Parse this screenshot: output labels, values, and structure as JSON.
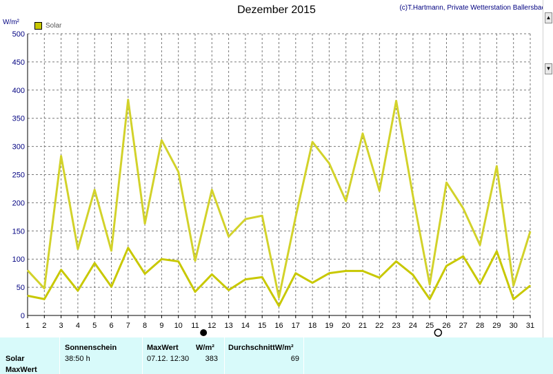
{
  "header": {
    "title": "Dezember 2015",
    "credit": "(c)T.Hartmann, Private Wetterstation Ballersbach",
    "unit": "W/m²"
  },
  "legend": {
    "label": "Solar",
    "color": "#c8c800"
  },
  "chart_data": {
    "type": "line",
    "title": "Dezember 2015",
    "ylabel": "W/m²",
    "xlabel": "",
    "ylim": [
      0,
      500
    ],
    "yticks": [
      0,
      50,
      100,
      150,
      200,
      250,
      300,
      350,
      400,
      450,
      500
    ],
    "x": [
      1,
      2,
      3,
      4,
      5,
      6,
      7,
      8,
      9,
      10,
      11,
      12,
      13,
      14,
      15,
      16,
      17,
      18,
      19,
      20,
      21,
      22,
      23,
      24,
      25,
      26,
      27,
      28,
      29,
      30,
      31
    ],
    "grid": true,
    "legend_position": "top-left",
    "series": [
      {
        "name": "Solar",
        "role": "max",
        "color": "#d2d22a",
        "values": [
          80,
          48,
          283,
          118,
          223,
          115,
          383,
          163,
          311,
          255,
          97,
          223,
          140,
          171,
          177,
          32,
          175,
          308,
          270,
          203,
          323,
          221,
          381,
          212,
          55,
          236,
          190,
          125,
          265,
          53,
          149
        ]
      },
      {
        "name": "Solar",
        "role": "average",
        "color": "#c8c800",
        "values": [
          35,
          29,
          81,
          44,
          93,
          51,
          120,
          74,
          100,
          96,
          42,
          73,
          45,
          64,
          68,
          17,
          75,
          58,
          75,
          79,
          79,
          67,
          96,
          72,
          29,
          88,
          105,
          56,
          114,
          29,
          53
        ]
      }
    ],
    "moon_markers": [
      {
        "day": 11.5,
        "phase": "new-moon"
      },
      {
        "day": 25.5,
        "phase": "full-moon"
      }
    ]
  },
  "colors": {
    "grid": "#777777",
    "axis_label": "#000080",
    "panel_bg": "#d8fafa"
  },
  "stats": {
    "rows": [
      "Solar",
      "MaxWert"
    ],
    "sunshine_header": "Sonnenschein",
    "sunshine_value": "38:50 h",
    "max_header": "MaxWert",
    "max_unit": "W/m²",
    "max_time": "07.12. 12:30",
    "max_value": "383",
    "avg_header": "DurchschnittW/m²",
    "avg_value": "69"
  }
}
